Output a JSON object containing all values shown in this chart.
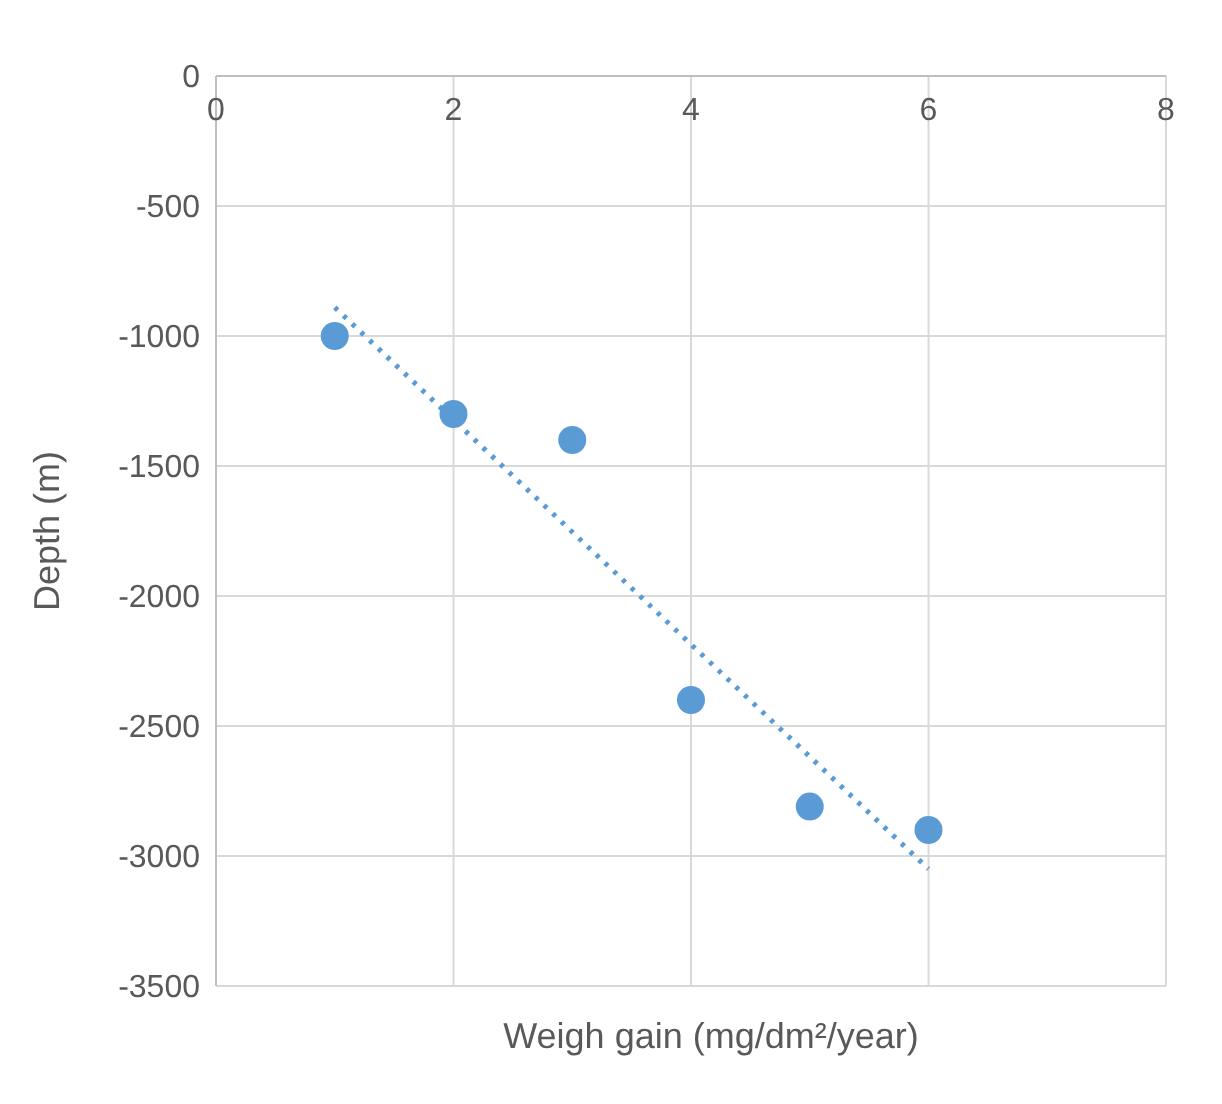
{
  "chart_data": {
    "type": "scatter",
    "xlabel": "Weigh gain (mg/dm²/year)",
    "ylabel": "Depth (m)",
    "xlim": [
      0,
      8
    ],
    "xticks": [
      0,
      2,
      4,
      6,
      8
    ],
    "ylim": [
      -3500,
      0
    ],
    "yticks": [
      -3500,
      -3000,
      -2500,
      -2000,
      -1500,
      -1000,
      -500,
      0
    ],
    "grid": true,
    "marker": "circle",
    "series": [
      {
        "color": "#5b9bd5",
        "x": [
          1,
          2,
          3,
          4,
          5,
          6
        ],
        "values": [
          -1000,
          -1300,
          -1400,
          -2400,
          -2810,
          -2900
        ]
      },
      {
        "type": "line",
        "color": "#5b9bd5",
        "line_style": "dotted",
        "marker": "none",
        "x": [
          1,
          6
        ],
        "values": [
          -890,
          -3050
        ]
      }
    ]
  }
}
